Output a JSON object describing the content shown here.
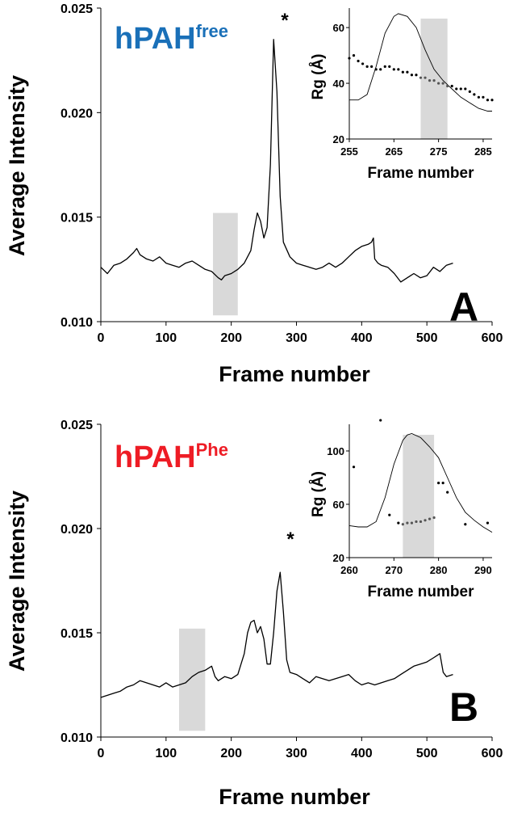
{
  "chart_data": [
    {
      "panel": "A",
      "type": "line",
      "sample_label": {
        "base": "hPAH",
        "sup": "free",
        "color": "#1a70b8"
      },
      "panel_letter": "A",
      "peak_marker": "*",
      "xlabel": "Frame number",
      "ylabel": "Average Intensity",
      "xlim": [
        0,
        600
      ],
      "ylim": [
        0.01,
        0.025
      ],
      "xticks": [
        "0",
        "100",
        "200",
        "300",
        "400",
        "500",
        "600"
      ],
      "yticks": [
        "0.010",
        "0.015",
        "0.020",
        "0.025"
      ],
      "highlight_x": [
        172,
        210
      ],
      "series": [
        {
          "x": [
            0,
            10,
            20,
            30,
            40,
            50,
            55,
            60,
            70,
            80,
            90,
            100,
            110,
            120,
            130,
            140,
            150,
            160,
            170,
            180,
            185,
            190,
            200,
            210,
            220,
            230,
            235,
            240,
            245,
            250,
            255,
            260,
            265,
            270,
            275,
            280,
            290,
            300,
            310,
            320,
            330,
            340,
            350,
            360,
            370,
            380,
            390,
            400,
            410,
            415,
            418,
            420,
            425,
            430,
            440,
            450,
            460,
            470,
            480,
            490,
            500,
            510,
            520,
            530,
            540
          ],
          "y": [
            0.0126,
            0.0123,
            0.0127,
            0.0128,
            0.013,
            0.0133,
            0.0135,
            0.0132,
            0.013,
            0.0129,
            0.0131,
            0.0128,
            0.0127,
            0.0126,
            0.0128,
            0.0129,
            0.0127,
            0.0125,
            0.0124,
            0.0121,
            0.012,
            0.0122,
            0.0123,
            0.0125,
            0.0128,
            0.0134,
            0.0144,
            0.0152,
            0.0148,
            0.014,
            0.0145,
            0.0175,
            0.0235,
            0.021,
            0.016,
            0.0138,
            0.0131,
            0.0128,
            0.0127,
            0.0126,
            0.0125,
            0.0126,
            0.0128,
            0.0126,
            0.0128,
            0.0131,
            0.0134,
            0.0136,
            0.0137,
            0.0138,
            0.014,
            0.013,
            0.0128,
            0.0127,
            0.0126,
            0.0123,
            0.0119,
            0.0121,
            0.0123,
            0.0121,
            0.0122,
            0.0126,
            0.0124,
            0.0127,
            0.0128
          ]
        }
      ],
      "inset": {
        "type": "line+scatter",
        "xlabel": "Frame number",
        "ylabel": "Rg (Å)",
        "xlim": [
          255,
          287
        ],
        "ylim": [
          20,
          67
        ],
        "xticks": [
          "255",
          "265",
          "275",
          "285"
        ],
        "yticks": [
          "20",
          "40",
          "60"
        ],
        "highlight_x": [
          271,
          277
        ],
        "intensity_curve": {
          "x": [
            255,
            257,
            259,
            261,
            263,
            265,
            266,
            268,
            270,
            272,
            274,
            276,
            278,
            280,
            282,
            284,
            286,
            287
          ],
          "y": [
            34,
            34,
            36,
            46,
            58,
            64,
            65,
            64,
            60,
            52,
            45,
            41,
            38,
            35,
            33,
            31,
            30,
            30
          ]
        },
        "rg_points": {
          "x": [
            255,
            256,
            257,
            258,
            259,
            260,
            261,
            262,
            263,
            264,
            265,
            266,
            267,
            268,
            269,
            270,
            271,
            272,
            273,
            274,
            275,
            276,
            277,
            278,
            279,
            280,
            281,
            282,
            283,
            284,
            285,
            286,
            287
          ],
          "y": [
            49,
            50,
            48,
            47,
            46,
            46,
            45,
            45,
            46,
            46,
            45,
            45,
            44,
            44,
            43,
            43,
            42,
            42,
            41,
            41,
            40,
            40,
            39,
            39,
            38,
            38,
            38,
            37,
            36,
            35,
            35,
            34,
            34
          ]
        }
      }
    },
    {
      "panel": "B",
      "type": "line",
      "sample_label": {
        "base": "hPAH",
        "sup": "Phe",
        "color": "#ee1c25"
      },
      "panel_letter": "B",
      "peak_marker": "*",
      "xlabel": "Frame number",
      "ylabel": "Average Intensity",
      "xlim": [
        0,
        600
      ],
      "ylim": [
        0.01,
        0.025
      ],
      "xticks": [
        "0",
        "100",
        "200",
        "300",
        "400",
        "500",
        "600"
      ],
      "yticks": [
        "0.010",
        "0.015",
        "0.020",
        "0.025"
      ],
      "highlight_x": [
        120,
        160
      ],
      "series": [
        {
          "x": [
            0,
            10,
            20,
            30,
            40,
            50,
            60,
            70,
            80,
            90,
            100,
            110,
            120,
            130,
            140,
            150,
            160,
            170,
            175,
            180,
            190,
            200,
            210,
            220,
            225,
            230,
            235,
            240,
            245,
            250,
            255,
            260,
            265,
            270,
            275,
            280,
            285,
            290,
            300,
            310,
            320,
            330,
            340,
            350,
            360,
            370,
            380,
            390,
            400,
            410,
            420,
            430,
            440,
            450,
            460,
            470,
            480,
            490,
            500,
            510,
            515,
            520,
            525,
            530,
            540
          ],
          "y": [
            0.0119,
            0.012,
            0.0121,
            0.0122,
            0.0124,
            0.0125,
            0.0127,
            0.0126,
            0.0125,
            0.0124,
            0.0126,
            0.0124,
            0.0125,
            0.0126,
            0.0129,
            0.0131,
            0.0132,
            0.0134,
            0.0129,
            0.0127,
            0.0129,
            0.0128,
            0.013,
            0.014,
            0.015,
            0.0155,
            0.0156,
            0.015,
            0.0153,
            0.0147,
            0.0135,
            0.0135,
            0.015,
            0.017,
            0.0179,
            0.016,
            0.0137,
            0.0131,
            0.013,
            0.0128,
            0.0126,
            0.0129,
            0.0128,
            0.0127,
            0.0128,
            0.0129,
            0.013,
            0.0127,
            0.0125,
            0.0126,
            0.0125,
            0.0126,
            0.0127,
            0.0128,
            0.013,
            0.0132,
            0.0134,
            0.0135,
            0.0136,
            0.0138,
            0.0139,
            0.014,
            0.0131,
            0.0129,
            0.013
          ]
        }
      ],
      "inset": {
        "type": "line+scatter",
        "xlabel": "Frame number",
        "ylabel": "Rg (Å)",
        "xlim": [
          260,
          292
        ],
        "ylim": [
          20,
          120
        ],
        "xticks": [
          "260",
          "270",
          "280",
          "290"
        ],
        "yticks": [
          "20",
          "60",
          "100"
        ],
        "highlight_x": [
          272,
          279
        ],
        "intensity_curve": {
          "x": [
            260,
            262,
            264,
            266,
            268,
            270,
            272,
            273,
            274,
            276,
            278,
            280,
            282,
            284,
            286,
            288,
            290,
            292
          ],
          "y": [
            44,
            43,
            43,
            47,
            65,
            90,
            108,
            112,
            113,
            110,
            103,
            95,
            80,
            65,
            54,
            48,
            43,
            39
          ]
        },
        "rg_points": {
          "x": [
            261,
            267,
            269,
            271,
            272,
            273,
            274,
            275,
            276,
            277,
            278,
            279,
            280,
            281,
            282,
            286,
            291
          ],
          "y": [
            88,
            123,
            52,
            46,
            45,
            46,
            46,
            47,
            47,
            48,
            49,
            50,
            76,
            76,
            69,
            45,
            46
          ]
        }
      }
    }
  ]
}
